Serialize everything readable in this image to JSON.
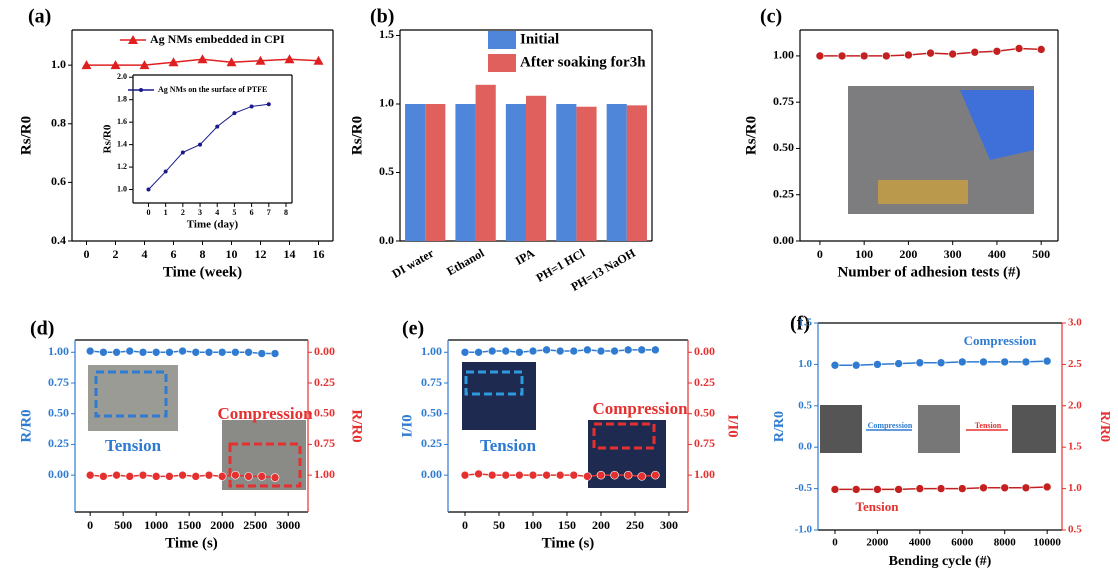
{
  "chart_data": [
    {
      "type": "line",
      "label": "(a)",
      "xlabel": "Time (week)",
      "ylabel": "Rs/R0",
      "x": [
        0,
        2,
        4,
        6,
        8,
        10,
        12,
        14,
        16
      ],
      "series": [
        {
          "name": "Ag NMs embedded in CPI",
          "color": "#e02020",
          "marker": "triangle",
          "values": [
            1.0,
            1.0,
            1.0,
            1.01,
            1.02,
            1.01,
            1.015,
            1.02,
            1.015
          ]
        }
      ],
      "xlim": [
        -1,
        17
      ],
      "ylim": [
        0.4,
        1.12
      ],
      "xticks": [
        0,
        2,
        4,
        6,
        8,
        10,
        12,
        14,
        16
      ],
      "yticks": [
        0.4,
        0.6,
        0.8,
        {
          "value": 1,
          "label": "1.0"
        }
      ],
      "legend": "upper center"
    },
    {
      "type": "bar",
      "label": "(b)",
      "ylabel": "Rs/R0",
      "categories": [
        "DI water",
        "Ethanol",
        "IPA",
        "PH=1 HCl",
        "PH=13 NaOH"
      ],
      "series": [
        {
          "name": "Initial",
          "color": "#4f86d9",
          "values": [
            1,
            1,
            1,
            1,
            1
          ]
        },
        {
          "name": "After soaking for3h",
          "color": "#e0605e",
          "values": [
            1.0,
            1.14,
            1.06,
            0.98,
            0.99
          ]
        }
      ],
      "ylim": [
        0,
        1.54
      ],
      "yticks": [
        {
          "value": 0,
          "label": "0.0"
        },
        0.5,
        {
          "value": 1,
          "label": "1.0"
        },
        1.5
      ],
      "legend": "upper right"
    },
    {
      "type": "line",
      "label": "(c)",
      "xlabel": "Number of adhesion tests (#)",
      "ylabel": "Rs/R0",
      "x": [
        0,
        50,
        100,
        150,
        200,
        250,
        300,
        350,
        400,
        450,
        500
      ],
      "series": [
        {
          "color": "#c42020",
          "marker": "circle",
          "values": [
            1.0,
            1.0,
            1.0,
            1.0,
            1.005,
            1.015,
            1.01,
            1.02,
            1.025,
            1.04,
            1.035
          ]
        }
      ],
      "xlim": [
        -45,
        538
      ],
      "ylim": [
        0,
        1.14
      ],
      "xticks": [
        0,
        100,
        200,
        300,
        400,
        500
      ],
      "yticks": [
        {
          "value": 0,
          "label": "0.00"
        },
        0.25,
        {
          "value": 0.5,
          "label": "0.50"
        },
        0.75,
        {
          "value": 1,
          "label": "1.00"
        }
      ]
    },
    {
      "type": "line",
      "label": "(d)",
      "xlabel": "Time (s)",
      "ylabel": "R/R0",
      "y2label": "R/R0",
      "x": [
        0,
        200,
        400,
        600,
        800,
        1000,
        1200,
        1400,
        1600,
        1800,
        2000,
        2200,
        2400,
        2600,
        2800
      ],
      "series": [
        {
          "color": "#2e7bd1",
          "marker": "circle",
          "values": [
            1.01,
            1.0,
            1.0,
            1.01,
            1.0,
            1.0,
            1.0,
            1.01,
            1.0,
            1.0,
            1.0,
            1.0,
            1.0,
            0.99,
            0.99
          ]
        },
        {
          "color": "#e53030",
          "marker": "circle",
          "axis": "y2",
          "values": [
            1.0,
            1.01,
            1.0,
            1.01,
            1.0,
            1.01,
            1.01,
            1.0,
            1.01,
            1.0,
            1.01,
            1.0,
            1.01,
            1.01,
            1.02
          ]
        }
      ],
      "xlim": [
        -230,
        3300
      ],
      "ylim": [
        -0.3,
        1.1
      ],
      "y2lim": [
        1.3,
        -0.1
      ],
      "xticks": [
        0,
        500,
        1000,
        1500,
        2000,
        2500,
        3000
      ],
      "yticks": [
        {
          "value": 0,
          "label": "0.00"
        },
        0.25,
        {
          "value": 0.5,
          "label": "0.50"
        },
        0.75,
        {
          "value": 1,
          "label": "1.00"
        }
      ],
      "y2ticks": [
        {
          "value": 0,
          "label": "0.00"
        },
        0.25,
        {
          "value": 0.5,
          "label": "0.50"
        },
        0.75,
        {
          "value": 1,
          "label": "1.00"
        }
      ],
      "axis_colors": [
        "#2e7bd1",
        "#e53030"
      ],
      "annotations": [
        "Tension",
        "Compression"
      ]
    },
    {
      "type": "line",
      "label": "(e)",
      "xlabel": "Time (s)",
      "ylabel": "I/I0",
      "y2label": "I/I0",
      "x": [
        0,
        20,
        40,
        60,
        80,
        100,
        120,
        140,
        160,
        180,
        200,
        220,
        240,
        260,
        280
      ],
      "series": [
        {
          "color": "#2e7bd1",
          "marker": "circle",
          "values": [
            1.0,
            1.0,
            1.01,
            1.01,
            1.0,
            1.01,
            1.02,
            1.01,
            1.01,
            1.02,
            1.01,
            1.01,
            1.02,
            1.02,
            1.02
          ]
        },
        {
          "color": "#e53030",
          "marker": "circle",
          "axis": "y2",
          "values": [
            1.0,
            0.99,
            1.0,
            1.0,
            1.0,
            1.0,
            1.0,
            1.0,
            1.0,
            1.01,
            1.0,
            1.0,
            1.0,
            1.01,
            1.0
          ]
        }
      ],
      "xlim": [
        -25,
        328
      ],
      "ylim": [
        -0.3,
        1.1
      ],
      "y2lim": [
        1.3,
        -0.1
      ],
      "xticks": [
        0,
        50,
        100,
        150,
        200,
        250,
        300
      ],
      "yticks": [
        {
          "value": 0,
          "label": "0.00"
        },
        0.25,
        {
          "value": 0.5,
          "label": "0.50"
        },
        0.75,
        {
          "value": 1,
          "label": "1.00"
        }
      ],
      "y2ticks": [
        {
          "value": 0,
          "label": "0.00"
        },
        0.25,
        {
          "value": 0.5,
          "label": "0.50"
        },
        0.75,
        {
          "value": 1,
          "label": "1.00"
        }
      ],
      "axis_colors": [
        "#2e7bd1",
        "#e53030"
      ],
      "annotations": [
        "Tension",
        "Compression"
      ]
    },
    {
      "type": "line",
      "label": "(f)",
      "xlabel": "Bending cycle (#)",
      "ylabel": "R/R0",
      "y2label": "R/R0",
      "x": [
        0,
        1000,
        2000,
        3000,
        4000,
        5000,
        6000,
        7000,
        8000,
        9000,
        10000
      ],
      "series": [
        {
          "color": "#2e7bd1",
          "marker": "circle",
          "values": [
            0.99,
            0.99,
            1.0,
            1.01,
            1.02,
            1.02,
            1.03,
            1.03,
            1.03,
            1.03,
            1.04
          ]
        },
        {
          "color": "#c42020",
          "marker": "circle",
          "axis": "y2",
          "values": [
            0.99,
            0.99,
            0.99,
            0.99,
            1.0,
            1.0,
            1.0,
            1.01,
            1.01,
            1.01,
            1.02
          ]
        }
      ],
      "xlim": [
        -800,
        10700
      ],
      "ylim": [
        -1,
        1.5
      ],
      "y2lim": [
        0.5,
        3
      ],
      "xticks": [
        0,
        2000,
        4000,
        6000,
        8000,
        10000
      ],
      "yticks": [
        {
          "value": -1,
          "label": "-1.0"
        },
        -0.5,
        {
          "value": 0,
          "label": "0.0"
        },
        0.5,
        {
          "value": 1,
          "label": "1.0"
        },
        1.5
      ],
      "y2ticks": [
        0.5,
        {
          "value": 1,
          "label": "1.0"
        },
        1.5,
        {
          "value": 2,
          "label": "2.0"
        },
        2.5,
        {
          "value": 3,
          "label": "3.0"
        }
      ],
      "axis_colors": [
        "#2e7bd1",
        "#e53030"
      ],
      "annotations": [
        "Compression",
        "Tension",
        "Compression",
        "Tension"
      ]
    },
    {
      "type": "line",
      "xlabel": "Time (day)",
      "ylabel": "Rs/R0",
      "x": [
        0,
        1,
        2,
        3,
        4,
        5,
        6,
        7
      ],
      "series": [
        {
          "name": "Ag NMs on the surface of PTFE",
          "color": "#1a1a8c",
          "marker": "circle",
          "values": [
            1.0,
            1.16,
            1.33,
            1.4,
            1.56,
            1.68,
            1.74,
            1.76
          ]
        }
      ],
      "xlim": [
        -0.9,
        8.35
      ],
      "ylim": [
        0.88,
        2.02
      ],
      "xticks": [
        0,
        1,
        2,
        3,
        4,
        5,
        6,
        7,
        8
      ],
      "yticks": [
        {
          "value": 1,
          "label": "1.0"
        },
        1.2,
        1.4,
        1.6,
        1.8,
        {
          "value": 2,
          "label": "2.0"
        }
      ],
      "legend": "upper left"
    }
  ]
}
